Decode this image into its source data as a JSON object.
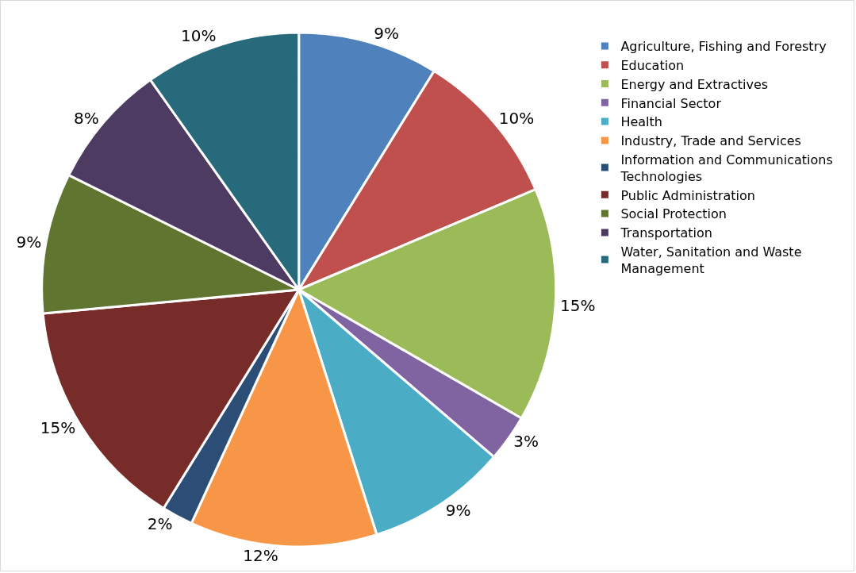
{
  "chart_data": {
    "type": "pie",
    "categories": [
      "Agriculture, Fishing and Forestry",
      "Education",
      "Energy and Extractives",
      "Financial Sector",
      "Health",
      "Industry, Trade and Services",
      "Information and Communications Technologies",
      "Public Administration",
      "Social Protection",
      "Transportation",
      "Water, Sanitation and Waste Management"
    ],
    "values": [
      9,
      10,
      15,
      3,
      9,
      12,
      2,
      15,
      9,
      8,
      10
    ],
    "value_labels": [
      "9%",
      "10%",
      "15%",
      "3%",
      "9%",
      "12%",
      "2%",
      "15%",
      "9%",
      "8%",
      "10%"
    ],
    "colors": [
      "#4f81bd",
      "#c0504d",
      "#9bbb59",
      "#8064a2",
      "#4bacc6",
      "#f79646",
      "#2c4d75",
      "#772c2a",
      "#5f7530",
      "#4d3b62",
      "#276a7c"
    ],
    "legend": "right"
  }
}
